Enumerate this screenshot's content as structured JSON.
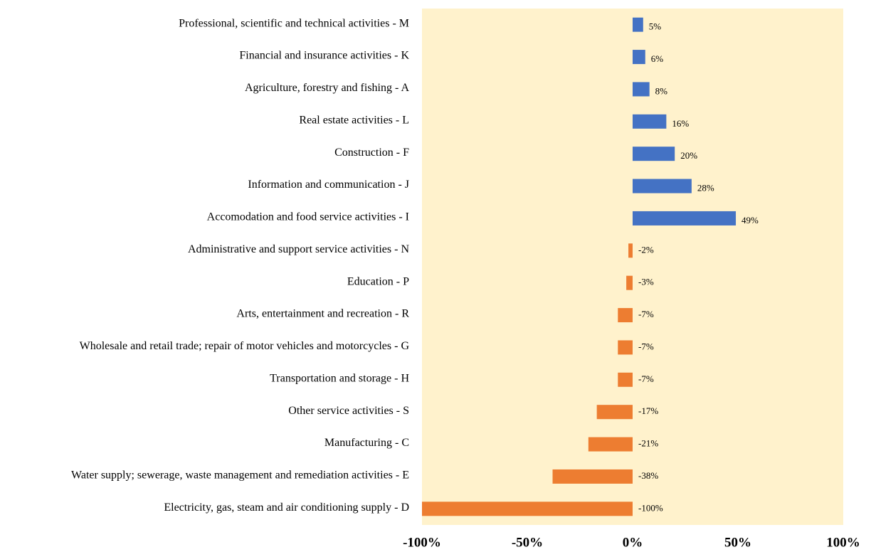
{
  "chart_data": {
    "type": "barh",
    "categories": [
      "Professional, scientific and technical activities - M",
      "Financial and insurance activities - K",
      "Agriculture, forestry and fishing - A",
      "Real estate activities - L",
      "Construction - F",
      "Information and communication - J",
      "Accomodation and food service activities - I",
      "Administrative and support service activities - N",
      "Education - P",
      "Arts, entertainment and recreation - R",
      "Wholesale and retail trade; repair of motor vehicles and motorcycles - G",
      "Transportation and storage - H",
      "Other service activities - S",
      "Manufacturing - C",
      "Water supply; sewerage, waste management and remediation activities - E",
      "Electricity, gas, steam and air conditioning supply - D"
    ],
    "values": [
      5,
      6,
      8,
      16,
      20,
      28,
      49,
      -2,
      -3,
      -7,
      -7,
      -7,
      -17,
      -21,
      -38,
      -100
    ],
    "value_labels": [
      "5%",
      "6%",
      "8%",
      "16%",
      "20%",
      "28%",
      "49%",
      "-2%",
      "-3%",
      "-7%",
      "-7%",
      "-7%",
      "-17%",
      "-21%",
      "-38%",
      "-100%"
    ],
    "positive_color": "#4472c4",
    "negative_color": "#ed7d31",
    "plot_background": "#fff2cc",
    "xlim": [
      -100,
      100
    ],
    "xticks": [
      {
        "value": -100,
        "label": "-100%"
      },
      {
        "value": -50,
        "label": "-50%"
      },
      {
        "value": 0,
        "label": "0%"
      },
      {
        "value": 50,
        "label": "50%"
      },
      {
        "value": 100,
        "label": "100%"
      }
    ]
  }
}
